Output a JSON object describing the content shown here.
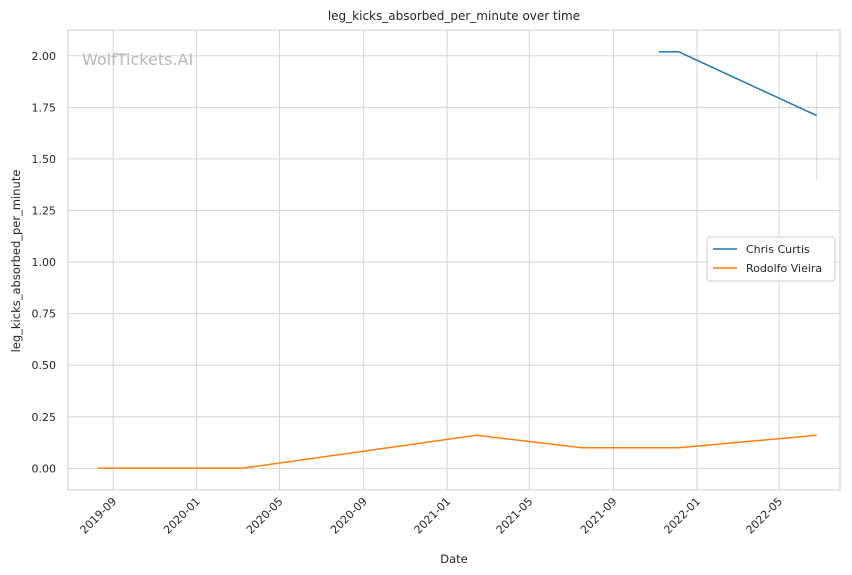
{
  "chart_data": {
    "type": "line",
    "title": "leg_kicks_absorbed_per_minute over time",
    "xlabel": "Date",
    "ylabel": "leg_kicks_absorbed_per_minute",
    "watermark": "WolfTickets.AI",
    "grid": true,
    "legend_position": "center-right",
    "xlim": [
      "2019-06-27",
      "2022-07-29"
    ],
    "ylim": [
      -0.105,
      2.125
    ],
    "x_ticks": [
      "2019-09",
      "2020-01",
      "2020-05",
      "2020-09",
      "2021-01",
      "2021-05",
      "2021-09",
      "2022-01",
      "2022-05"
    ],
    "y_ticks": [
      "0.00",
      "0.25",
      "0.50",
      "0.75",
      "1.00",
      "1.25",
      "1.50",
      "1.75",
      "2.00"
    ],
    "series": [
      {
        "name": "Chris Curtis",
        "color": "#1f77b4",
        "x": [
          "2021-11-06",
          "2021-12-05",
          "2022-06-25"
        ],
        "y": [
          2.02,
          2.02,
          1.71
        ],
        "error_band": {
          "x": "2022-06-25",
          "low": 1.4,
          "high": 2.02
        }
      },
      {
        "name": "Rodolfo Vieira",
        "color": "#ff7f0e",
        "x": [
          "2019-08-10",
          "2020-03-07",
          "2021-02-13",
          "2021-07-17",
          "2021-12-05",
          "2022-06-25"
        ],
        "y": [
          0.0,
          0.0,
          0.16,
          0.1,
          0.1,
          0.16
        ]
      }
    ]
  }
}
